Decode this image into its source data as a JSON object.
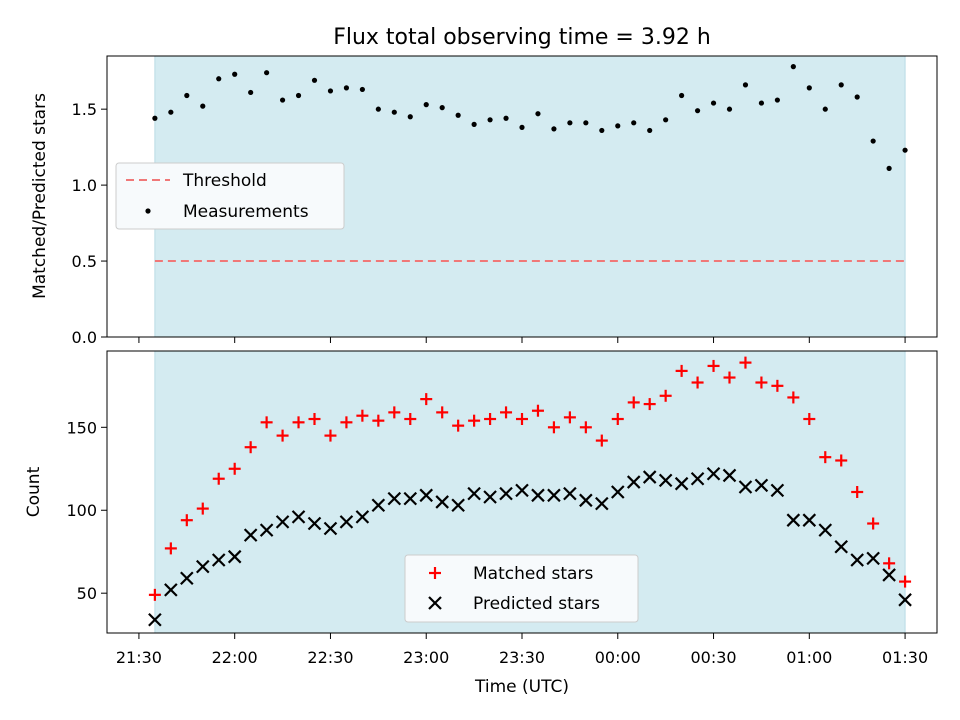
{
  "chart_data": [
    {
      "type": "scatter",
      "title": "Flux total observing time = 3.92 h",
      "ylabel": "Matched/Predicted stars",
      "xlabel": "",
      "ylim": [
        0,
        1.85
      ],
      "yticks": [
        0.0,
        0.5,
        1.0,
        1.5
      ],
      "ytick_labels": [
        "0.0",
        "0.5",
        "1.0",
        "1.5"
      ],
      "x_time_range": [
        "21:20",
        "01:40"
      ],
      "observing_window": [
        "21:35",
        "01:30"
      ],
      "threshold": 0.5,
      "legend": {
        "placement": "center-left",
        "entries": [
          {
            "label": "Threshold",
            "style": "dashed-line",
            "color": "#f07878"
          },
          {
            "label": "Measurements",
            "style": "dot",
            "color": "#000000"
          }
        ]
      },
      "series": [
        {
          "name": "Measurements",
          "x": [
            "21:35",
            "21:40",
            "21:45",
            "21:50",
            "21:55",
            "22:00",
            "22:05",
            "22:10",
            "22:15",
            "22:20",
            "22:25",
            "22:30",
            "22:35",
            "22:40",
            "22:45",
            "22:50",
            "22:55",
            "23:00",
            "23:05",
            "23:10",
            "23:15",
            "23:20",
            "23:25",
            "23:30",
            "23:35",
            "23:40",
            "23:45",
            "23:50",
            "23:55",
            "00:00",
            "00:05",
            "00:10",
            "00:15",
            "00:20",
            "00:25",
            "00:30",
            "00:35",
            "00:40",
            "00:45",
            "00:50",
            "00:55",
            "01:00",
            "01:05",
            "01:10",
            "01:15",
            "01:20",
            "01:25",
            "01:30"
          ],
          "values": [
            1.44,
            1.48,
            1.59,
            1.52,
            1.7,
            1.73,
            1.61,
            1.74,
            1.56,
            1.59,
            1.69,
            1.62,
            1.64,
            1.63,
            1.5,
            1.48,
            1.45,
            1.53,
            1.51,
            1.46,
            1.4,
            1.43,
            1.44,
            1.38,
            1.47,
            1.37,
            1.41,
            1.41,
            1.36,
            1.39,
            1.41,
            1.36,
            1.43,
            1.59,
            1.49,
            1.54,
            1.5,
            1.66,
            1.54,
            1.56,
            1.78,
            1.64,
            1.5,
            1.66,
            1.58,
            1.29,
            1.11,
            1.23
          ]
        }
      ]
    },
    {
      "type": "scatter",
      "title": "",
      "ylabel": "Count",
      "xlabel": "Time (UTC)",
      "ylim": [
        26,
        196
      ],
      "yticks": [
        50,
        100,
        150
      ],
      "ytick_labels": [
        "50",
        "100",
        "150"
      ],
      "x_time_range": [
        "21:20",
        "01:40"
      ],
      "xticks": [
        "21:30",
        "22:00",
        "22:30",
        "23:00",
        "23:30",
        "00:00",
        "00:30",
        "01:00",
        "01:30"
      ],
      "observing_window": [
        "21:35",
        "01:30"
      ],
      "legend": {
        "placement": "lower-center",
        "entries": [
          {
            "label": "Matched stars",
            "style": "plus",
            "color": "#ff0000"
          },
          {
            "label": "Predicted stars",
            "style": "cross",
            "color": "#000000"
          }
        ]
      },
      "series": [
        {
          "name": "Matched stars",
          "color": "#ff0000",
          "x": [
            "21:35",
            "21:40",
            "21:45",
            "21:50",
            "21:55",
            "22:00",
            "22:05",
            "22:10",
            "22:15",
            "22:20",
            "22:25",
            "22:30",
            "22:35",
            "22:40",
            "22:45",
            "22:50",
            "22:55",
            "23:00",
            "23:05",
            "23:10",
            "23:15",
            "23:20",
            "23:25",
            "23:30",
            "23:35",
            "23:40",
            "23:45",
            "23:50",
            "23:55",
            "00:00",
            "00:05",
            "00:10",
            "00:15",
            "00:20",
            "00:25",
            "00:30",
            "00:35",
            "00:40",
            "00:45",
            "00:50",
            "00:55",
            "01:00",
            "01:05",
            "01:10",
            "01:15",
            "01:20",
            "01:25",
            "01:30"
          ],
          "values": [
            49,
            77,
            94,
            101,
            119,
            125,
            138,
            153,
            145,
            153,
            155,
            145,
            153,
            157,
            154,
            159,
            155,
            167,
            159,
            151,
            154,
            155,
            159,
            155,
            160,
            150,
            156,
            150,
            142,
            155,
            165,
            164,
            169,
            184,
            177,
            187,
            180,
            189,
            177,
            175,
            168,
            155,
            132,
            130,
            111,
            92,
            68,
            57
          ]
        },
        {
          "name": "Predicted stars",
          "color": "#000000",
          "x": [
            "21:35",
            "21:40",
            "21:45",
            "21:50",
            "21:55",
            "22:00",
            "22:05",
            "22:10",
            "22:15",
            "22:20",
            "22:25",
            "22:30",
            "22:35",
            "22:40",
            "22:45",
            "22:50",
            "22:55",
            "23:00",
            "23:05",
            "23:10",
            "23:15",
            "23:20",
            "23:25",
            "23:30",
            "23:35",
            "23:40",
            "23:45",
            "23:50",
            "23:55",
            "00:00",
            "00:05",
            "00:10",
            "00:15",
            "00:20",
            "00:25",
            "00:30",
            "00:35",
            "00:40",
            "00:45",
            "00:50",
            "00:55",
            "01:00",
            "01:05",
            "01:10",
            "01:15",
            "01:20",
            "01:25",
            "01:30"
          ],
          "values": [
            34,
            52,
            59,
            66,
            70,
            72,
            85,
            88,
            93,
            96,
            92,
            89,
            93,
            96,
            103,
            107,
            107,
            109,
            105,
            103,
            110,
            108,
            110,
            112,
            109,
            109,
            110,
            106,
            104,
            111,
            117,
            120,
            118,
            116,
            119,
            122,
            121,
            114,
            115,
            112,
            94,
            94,
            88,
            78,
            70,
            71,
            61,
            46
          ]
        }
      ]
    }
  ],
  "colors": {
    "window_fill": "#d4ebf1",
    "window_edge": "#b9dbe5",
    "threshold": "#f07878",
    "matched": "#ff0000",
    "predicted": "#000000"
  }
}
